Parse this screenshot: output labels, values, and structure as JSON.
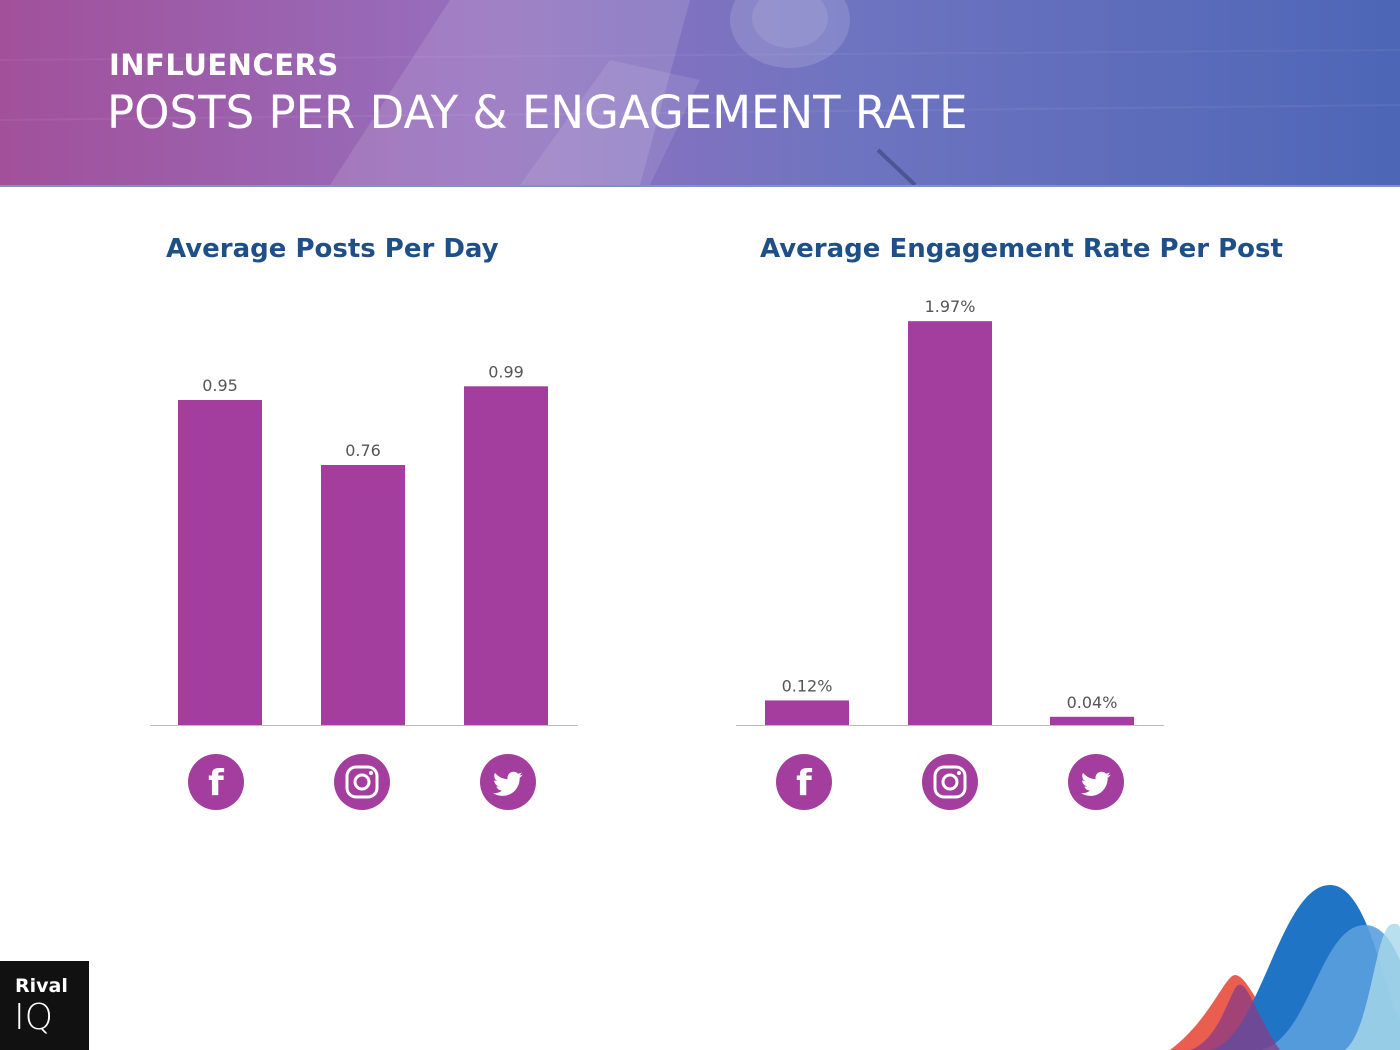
{
  "header": {
    "kicker": "INFLUENCERS",
    "title": "POSTS PER DAY & ENGAGEMENT RATE"
  },
  "colors": {
    "bar": "#a43e9e",
    "icon_bg": "#a43e9e",
    "title": "#1f4f87"
  },
  "brand": {
    "line1": "Rival",
    "line2": "IQ"
  },
  "chart_data": [
    {
      "type": "bar",
      "title": "Average Posts Per Day",
      "categories": [
        "Facebook",
        "Instagram",
        "Twitter"
      ],
      "category_icons": [
        "facebook-icon",
        "instagram-icon",
        "twitter-icon"
      ],
      "values": [
        0.95,
        0.76,
        0.99
      ],
      "value_labels": [
        "0.95",
        "0.76",
        "0.99"
      ],
      "ylim": [
        0,
        1.14
      ],
      "xlabel": "",
      "ylabel": "",
      "grid": false
    },
    {
      "type": "bar",
      "title": "Average Engagement Rate Per Post",
      "categories": [
        "Facebook",
        "Instagram",
        "Twitter"
      ],
      "category_icons": [
        "facebook-icon",
        "instagram-icon",
        "twitter-icon"
      ],
      "values": [
        0.12,
        1.97,
        0.04
      ],
      "value_labels": [
        "0.12%",
        "1.97%",
        "0.04%"
      ],
      "ylim": [
        0,
        2.0
      ],
      "xlabel": "",
      "ylabel": "",
      "grid": false
    }
  ]
}
